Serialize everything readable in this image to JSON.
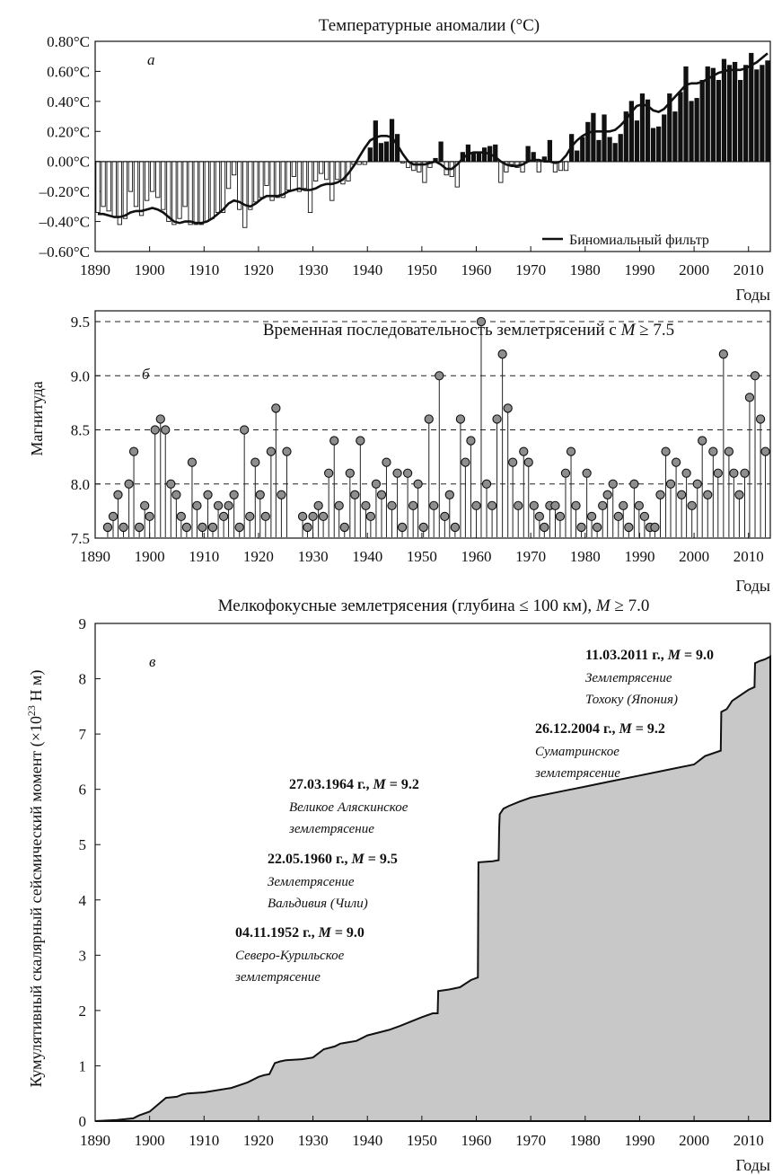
{
  "chart_data": [
    {
      "type": "bar",
      "panel_letter": "а",
      "title": "Температурные аномалии (°C)",
      "xlabel": "Годы",
      "ylabel": "",
      "xlim": [
        1890,
        2014
      ],
      "ylim": [
        -0.6,
        0.8
      ],
      "x_ticks": [
        "1890",
        "1900",
        "1910",
        "1920",
        "1930",
        "1940",
        "1950",
        "1960",
        "1970",
        "1980",
        "1990",
        "2000",
        "2010"
      ],
      "y_ticks": [
        "–0.60°C",
        "–0.40°C",
        "–0.20°C",
        "0.00°C",
        "0.20°C",
        "0.40°C",
        "0.60°C",
        "0.80°C"
      ],
      "legend": "Биномиальный фильтр",
      "legend_position": "bottom-right",
      "x": [
        1890,
        1891,
        1892,
        1893,
        1894,
        1895,
        1896,
        1897,
        1898,
        1899,
        1900,
        1901,
        1902,
        1903,
        1904,
        1905,
        1906,
        1907,
        1908,
        1909,
        1910,
        1911,
        1912,
        1913,
        1914,
        1915,
        1916,
        1917,
        1918,
        1919,
        1920,
        1921,
        1922,
        1923,
        1924,
        1925,
        1926,
        1927,
        1928,
        1929,
        1930,
        1931,
        1932,
        1933,
        1934,
        1935,
        1936,
        1937,
        1938,
        1939,
        1940,
        1941,
        1942,
        1943,
        1944,
        1945,
        1946,
        1947,
        1948,
        1949,
        1950,
        1951,
        1952,
        1953,
        1954,
        1955,
        1956,
        1957,
        1958,
        1959,
        1960,
        1961,
        1962,
        1963,
        1964,
        1965,
        1966,
        1967,
        1968,
        1969,
        1970,
        1971,
        1972,
        1973,
        1974,
        1975,
        1976,
        1977,
        1978,
        1979,
        1980,
        1981,
        1982,
        1983,
        1984,
        1985,
        1986,
        1987,
        1988,
        1989,
        1990,
        1991,
        1992,
        1993,
        1994,
        1995,
        1996,
        1997,
        1998,
        1999,
        2000,
        2001,
        2002,
        2003,
        2004,
        2005,
        2006,
        2007,
        2008,
        2009,
        2010,
        2011,
        2012,
        2013
      ],
      "anomaly": [
        -0.34,
        -0.3,
        -0.33,
        -0.37,
        -0.42,
        -0.38,
        -0.2,
        -0.3,
        -0.36,
        -0.26,
        -0.2,
        -0.24,
        -0.32,
        -0.4,
        -0.42,
        -0.38,
        -0.3,
        -0.42,
        -0.42,
        -0.42,
        -0.4,
        -0.38,
        -0.34,
        -0.34,
        -0.18,
        -0.09,
        -0.32,
        -0.44,
        -0.32,
        -0.27,
        -0.24,
        -0.16,
        -0.26,
        -0.24,
        -0.24,
        -0.19,
        -0.1,
        -0.2,
        -0.18,
        -0.34,
        -0.13,
        -0.08,
        -0.12,
        -0.26,
        -0.12,
        -0.15,
        -0.13,
        -0.02,
        -0.02,
        -0.02,
        0.09,
        0.27,
        0.12,
        0.13,
        0.28,
        0.18,
        -0.01,
        -0.04,
        -0.06,
        -0.07,
        -0.14,
        -0.04,
        0.02,
        0.13,
        -0.09,
        -0.1,
        -0.17,
        0.06,
        0.11,
        0.06,
        0.06,
        0.09,
        0.1,
        0.11,
        -0.14,
        -0.07,
        -0.02,
        -0.04,
        -0.07,
        0.1,
        0.06,
        -0.07,
        0.03,
        0.14,
        -0.07,
        -0.06,
        -0.06,
        0.18,
        0.07,
        0.16,
        0.26,
        0.32,
        0.14,
        0.31,
        0.16,
        0.12,
        0.18,
        0.33,
        0.4,
        0.27,
        0.45,
        0.41,
        0.22,
        0.23,
        0.31,
        0.45,
        0.33,
        0.46,
        0.63,
        0.4,
        0.42,
        0.54,
        0.63,
        0.62,
        0.54,
        0.68,
        0.64,
        0.66,
        0.54,
        0.64,
        0.72,
        0.61,
        0.64,
        0.67
      ],
      "smooth": [
        -0.35,
        -0.35,
        -0.36,
        -0.37,
        -0.37,
        -0.36,
        -0.34,
        -0.33,
        -0.33,
        -0.32,
        -0.31,
        -0.32,
        -0.34,
        -0.37,
        -0.4,
        -0.41,
        -0.4,
        -0.4,
        -0.41,
        -0.41,
        -0.4,
        -0.38,
        -0.35,
        -0.32,
        -0.28,
        -0.26,
        -0.27,
        -0.29,
        -0.3,
        -0.28,
        -0.25,
        -0.23,
        -0.23,
        -0.23,
        -0.22,
        -0.2,
        -0.19,
        -0.18,
        -0.19,
        -0.19,
        -0.18,
        -0.16,
        -0.15,
        -0.15,
        -0.14,
        -0.12,
        -0.08,
        -0.03,
        0.03,
        0.09,
        0.14,
        0.16,
        0.17,
        0.17,
        0.16,
        0.11,
        0.05,
        0.0,
        -0.02,
        -0.02,
        -0.02,
        -0.01,
        0.0,
        -0.02,
        -0.05,
        -0.05,
        -0.02,
        0.02,
        0.05,
        0.06,
        0.06,
        0.06,
        0.05,
        0.03,
        0.0,
        -0.02,
        -0.03,
        -0.03,
        -0.02,
        0.0,
        0.01,
        0.01,
        0.0,
        0.0,
        -0.01,
        0.0,
        0.04,
        0.1,
        0.14,
        0.17,
        0.19,
        0.2,
        0.2,
        0.2,
        0.2,
        0.21,
        0.24,
        0.28,
        0.33,
        0.37,
        0.38,
        0.37,
        0.34,
        0.33,
        0.35,
        0.39,
        0.43,
        0.47,
        0.51,
        0.52,
        0.52,
        0.53,
        0.55,
        0.57,
        0.59,
        0.6,
        0.61,
        0.61,
        0.61,
        0.62,
        0.64,
        0.66,
        0.69,
        0.72
      ]
    },
    {
      "type": "scatter",
      "panel_letter": "б",
      "title": "Временная последовательность землетрясений с",
      "title_var": "M",
      "title_rel": " ≥ 7.5",
      "xlabel": "Годы",
      "ylabel": "Магнитуда",
      "xlim": [
        1890,
        2014
      ],
      "ylim": [
        7.5,
        9.6
      ],
      "x_ticks": [
        "1890",
        "1900",
        "1910",
        "1920",
        "1930",
        "1940",
        "1950",
        "1960",
        "1970",
        "1980",
        "1990",
        "2000",
        "2010"
      ],
      "y_ticks": [
        "7.5",
        "8.0",
        "8.5",
        "9.0",
        "9.5"
      ],
      "dashed_levels": [
        8.0,
        8.5,
        9.0,
        9.5
      ],
      "events": [
        [
          1892.3,
          7.6
        ],
        [
          1893.3,
          7.7
        ],
        [
          1894.2,
          7.9
        ],
        [
          1895.2,
          7.6
        ],
        [
          1896.2,
          8.0
        ],
        [
          1897.1,
          8.3
        ],
        [
          1898.1,
          7.6
        ],
        [
          1899.1,
          7.8
        ],
        [
          1900.0,
          7.7
        ],
        [
          1901.0,
          8.5
        ],
        [
          1902.0,
          8.6
        ],
        [
          1902.9,
          8.5
        ],
        [
          1903.9,
          8.0
        ],
        [
          1904.9,
          7.9
        ],
        [
          1905.8,
          7.7
        ],
        [
          1906.8,
          7.6
        ],
        [
          1907.8,
          8.2
        ],
        [
          1908.7,
          7.8
        ],
        [
          1909.7,
          7.6
        ],
        [
          1910.7,
          7.9
        ],
        [
          1911.6,
          7.6
        ],
        [
          1912.6,
          7.8
        ],
        [
          1913.6,
          7.7
        ],
        [
          1914.5,
          7.8
        ],
        [
          1915.5,
          7.9
        ],
        [
          1916.5,
          7.6
        ],
        [
          1917.4,
          8.5
        ],
        [
          1918.4,
          7.7
        ],
        [
          1919.4,
          8.2
        ],
        [
          1920.3,
          7.9
        ],
        [
          1921.3,
          7.7
        ],
        [
          1922.3,
          8.3
        ],
        [
          1923.2,
          8.7
        ],
        [
          1924.2,
          7.9
        ],
        [
          1925.2,
          8.3
        ],
        [
          1928.1,
          7.7
        ],
        [
          1929.0,
          7.6
        ],
        [
          1930.0,
          7.7
        ],
        [
          1931.0,
          7.8
        ],
        [
          1931.9,
          7.7
        ],
        [
          1932.9,
          8.1
        ],
        [
          1933.9,
          8.4
        ],
        [
          1934.8,
          7.8
        ],
        [
          1935.8,
          7.6
        ],
        [
          1936.8,
          8.1
        ],
        [
          1937.7,
          7.9
        ],
        [
          1938.7,
          8.4
        ],
        [
          1939.7,
          7.8
        ],
        [
          1940.6,
          7.7
        ],
        [
          1941.6,
          8.0
        ],
        [
          1942.6,
          7.9
        ],
        [
          1943.5,
          8.2
        ],
        [
          1944.5,
          7.8
        ],
        [
          1945.5,
          8.1
        ],
        [
          1946.4,
          7.6
        ],
        [
          1947.4,
          8.1
        ],
        [
          1948.4,
          7.8
        ],
        [
          1949.3,
          8.0
        ],
        [
          1950.3,
          7.6
        ],
        [
          1951.3,
          8.6
        ],
        [
          1952.2,
          7.8
        ],
        [
          1953.2,
          9.0
        ],
        [
          1954.2,
          7.7
        ],
        [
          1955.1,
          7.9
        ],
        [
          1956.1,
          7.6
        ],
        [
          1957.1,
          8.6
        ],
        [
          1958.0,
          8.2
        ],
        [
          1959.0,
          8.4
        ],
        [
          1960.0,
          7.8
        ],
        [
          1960.9,
          9.5
        ],
        [
          1961.9,
          8.0
        ],
        [
          1962.9,
          7.8
        ],
        [
          1963.8,
          8.6
        ],
        [
          1964.8,
          9.2
        ],
        [
          1965.8,
          8.7
        ],
        [
          1966.7,
          8.2
        ],
        [
          1967.7,
          7.8
        ],
        [
          1968.7,
          8.3
        ],
        [
          1969.6,
          8.2
        ],
        [
          1970.6,
          7.8
        ],
        [
          1971.6,
          7.7
        ],
        [
          1972.5,
          7.6
        ],
        [
          1973.5,
          7.8
        ],
        [
          1974.5,
          7.8
        ],
        [
          1975.4,
          7.7
        ],
        [
          1976.4,
          8.1
        ],
        [
          1977.4,
          8.3
        ],
        [
          1978.3,
          7.8
        ],
        [
          1979.3,
          7.6
        ],
        [
          1980.3,
          8.1
        ],
        [
          1981.2,
          7.7
        ],
        [
          1982.2,
          7.6
        ],
        [
          1983.2,
          7.8
        ],
        [
          1984.1,
          7.9
        ],
        [
          1985.1,
          8.0
        ],
        [
          1986.1,
          7.7
        ],
        [
          1987.0,
          7.8
        ],
        [
          1988.0,
          7.6
        ],
        [
          1989.0,
          8.0
        ],
        [
          1989.9,
          7.8
        ],
        [
          1990.9,
          7.7
        ],
        [
          1991.9,
          7.6
        ],
        [
          1992.8,
          7.6
        ],
        [
          1993.8,
          7.9
        ],
        [
          1994.8,
          8.3
        ],
        [
          1995.7,
          8.0
        ],
        [
          1996.7,
          8.2
        ],
        [
          1997.7,
          7.9
        ],
        [
          1998.6,
          8.1
        ],
        [
          1999.6,
          7.8
        ],
        [
          2000.6,
          8.0
        ],
        [
          2001.5,
          8.4
        ],
        [
          2002.5,
          7.9
        ],
        [
          2003.5,
          8.3
        ],
        [
          2004.4,
          8.1
        ],
        [
          2005.4,
          9.2
        ],
        [
          2006.4,
          8.3
        ],
        [
          2007.3,
          8.1
        ],
        [
          2008.3,
          7.9
        ],
        [
          2009.3,
          8.1
        ],
        [
          2010.2,
          8.8
        ],
        [
          2011.2,
          9.0
        ],
        [
          2012.2,
          8.6
        ],
        [
          2013.1,
          8.3
        ]
      ]
    },
    {
      "type": "area",
      "panel_letter": "в",
      "title": "Мелкофокусные землетрясения (глубина ≤ 100 км),",
      "title_var": "M",
      "title_rel": " ≥ 7.0",
      "xlabel": "Годы",
      "ylabel": "Кумулятивный скалярный сейсмический момент (×10",
      "ylabel_exp": "23",
      "ylabel_unit": " Н м)",
      "xlim": [
        1890,
        2014
      ],
      "ylim": [
        0,
        9
      ],
      "x_ticks": [
        "1890",
        "1900",
        "1910",
        "1920",
        "1930",
        "1940",
        "1950",
        "1960",
        "1970",
        "1980",
        "1990",
        "2000",
        "2010"
      ],
      "y_ticks": [
        "0",
        "1",
        "2",
        "3",
        "4",
        "5",
        "6",
        "7",
        "8",
        "9"
      ],
      "x": [
        1890,
        1894,
        1897,
        1898,
        1900,
        1903,
        1905,
        1906,
        1907,
        1910,
        1915,
        1918,
        1920,
        1921,
        1922,
        1923,
        1924,
        1925,
        1928,
        1930,
        1932,
        1934,
        1935,
        1938,
        1940,
        1942,
        1944,
        1946,
        1948,
        1950,
        1952,
        1952.9,
        1953,
        1955,
        1957,
        1959,
        1960.3,
        1960.4,
        1963,
        1964.1,
        1964.2,
        1964.3,
        1965,
        1966,
        1968,
        1970,
        1975,
        1980,
        1985,
        1990,
        1995,
        2000,
        2002,
        2004.9,
        2005,
        2006,
        2007,
        2010,
        2011.1,
        2011.2,
        2012,
        2013,
        2014
      ],
      "y": [
        0,
        0.02,
        0.05,
        0.1,
        0.17,
        0.42,
        0.44,
        0.48,
        0.5,
        0.52,
        0.6,
        0.7,
        0.8,
        0.83,
        0.85,
        1.05,
        1.08,
        1.1,
        1.12,
        1.15,
        1.3,
        1.35,
        1.4,
        1.45,
        1.55,
        1.6,
        1.65,
        1.72,
        1.8,
        1.88,
        1.95,
        1.95,
        2.35,
        2.38,
        2.42,
        2.55,
        2.6,
        4.68,
        4.7,
        4.72,
        5.3,
        5.55,
        5.65,
        5.7,
        5.78,
        5.85,
        5.95,
        6.05,
        6.15,
        6.25,
        6.35,
        6.45,
        6.6,
        6.7,
        7.4,
        7.45,
        7.6,
        7.8,
        7.85,
        8.28,
        8.32,
        8.35,
        8.4
      ],
      "annotations": [
        {
          "date": "04.11.1952 г., ",
          "m": "M",
          "rel": " = 9.0",
          "line1": "Северо-Курильское",
          "line2": "землетрясение"
        },
        {
          "date": "22.05.1960 г., ",
          "m": "M",
          "rel": " = 9.5",
          "line1": "Землетрясение",
          "line2": "Вальдивия (Чили)"
        },
        {
          "date": "27.03.1964 г., ",
          "m": "M",
          "rel": " = 9.2",
          "line1": "Великое Аляскинское",
          "line2": "землетрясение"
        },
        {
          "date": "26.12.2004 г., ",
          "m": "M",
          "rel": " = 9.2",
          "line1": "Суматринское",
          "line2": "землетрясение"
        },
        {
          "date": "11.03.2011 г., ",
          "m": "M",
          "rel": " = 9.0",
          "line1": "Землетрясение",
          "line2": "Тохоку (Япония)"
        }
      ]
    }
  ]
}
